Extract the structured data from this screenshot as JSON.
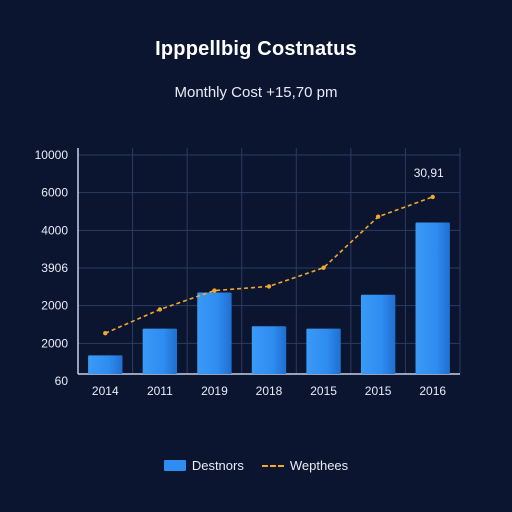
{
  "chart_data": {
    "type": "bar",
    "title": "Ipppellbig Costnatus",
    "subtitle": "Monthly Cost +15,70 pm",
    "categories": [
      "2014",
      "2011",
      "2019",
      "2018",
      "2015",
      "2015",
      "2016"
    ],
    "series": [
      {
        "name": "Destnors",
        "type": "bar",
        "values": [
          1100,
          2250,
          3800,
          2350,
          2250,
          3700,
          6800
        ]
      },
      {
        "name": "Wepthees",
        "type": "line",
        "values": [
          2050,
          3070,
          3880,
          4060,
          4860,
          7050,
          7900
        ]
      }
    ],
    "yticks": [
      "10000",
      "6000",
      "4000",
      "3906",
      "2000",
      "2000",
      "60"
    ],
    "annotations": [
      "30,91"
    ],
    "ylim": [
      300,
      10000
    ],
    "grid": true,
    "legend_position": "bottom-center",
    "colors": {
      "background": "#0b1530",
      "bar": "#2f8cf0",
      "line": "#f0a830",
      "grid": "#2a3b62"
    }
  }
}
